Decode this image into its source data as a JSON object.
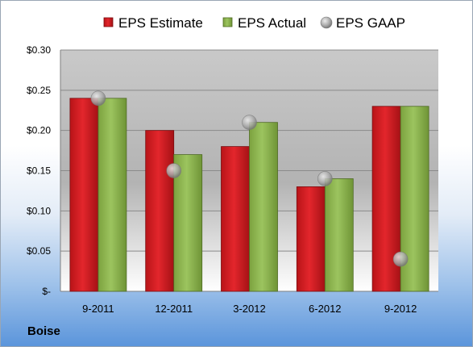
{
  "company": "Boise",
  "chart_data": {
    "type": "bar",
    "categories": [
      "9-2011",
      "12-2011",
      "3-2012",
      "6-2012",
      "9-2012"
    ],
    "series": [
      {
        "name": "EPS Estimate",
        "type": "bar",
        "color": "#d81e24",
        "values": [
          0.24,
          0.2,
          0.18,
          0.13,
          0.23
        ]
      },
      {
        "name": "EPS Actual",
        "type": "bar",
        "color": "#8fb552",
        "values": [
          0.24,
          0.17,
          0.21,
          0.14,
          0.23
        ]
      },
      {
        "name": "EPS GAAP",
        "type": "marker",
        "color": "#a9a9a9",
        "values": [
          0.24,
          0.15,
          0.21,
          0.14,
          0.04
        ]
      }
    ],
    "ylim": [
      0,
      0.3
    ],
    "yticks": [
      0,
      0.05,
      0.1,
      0.15,
      0.2,
      0.25,
      0.3
    ],
    "ytick_labels": [
      "$-",
      "$0.05",
      "$0.10",
      "$0.15",
      "$0.20",
      "$0.25",
      "$0.30"
    ],
    "grid": true,
    "legend": "top"
  }
}
